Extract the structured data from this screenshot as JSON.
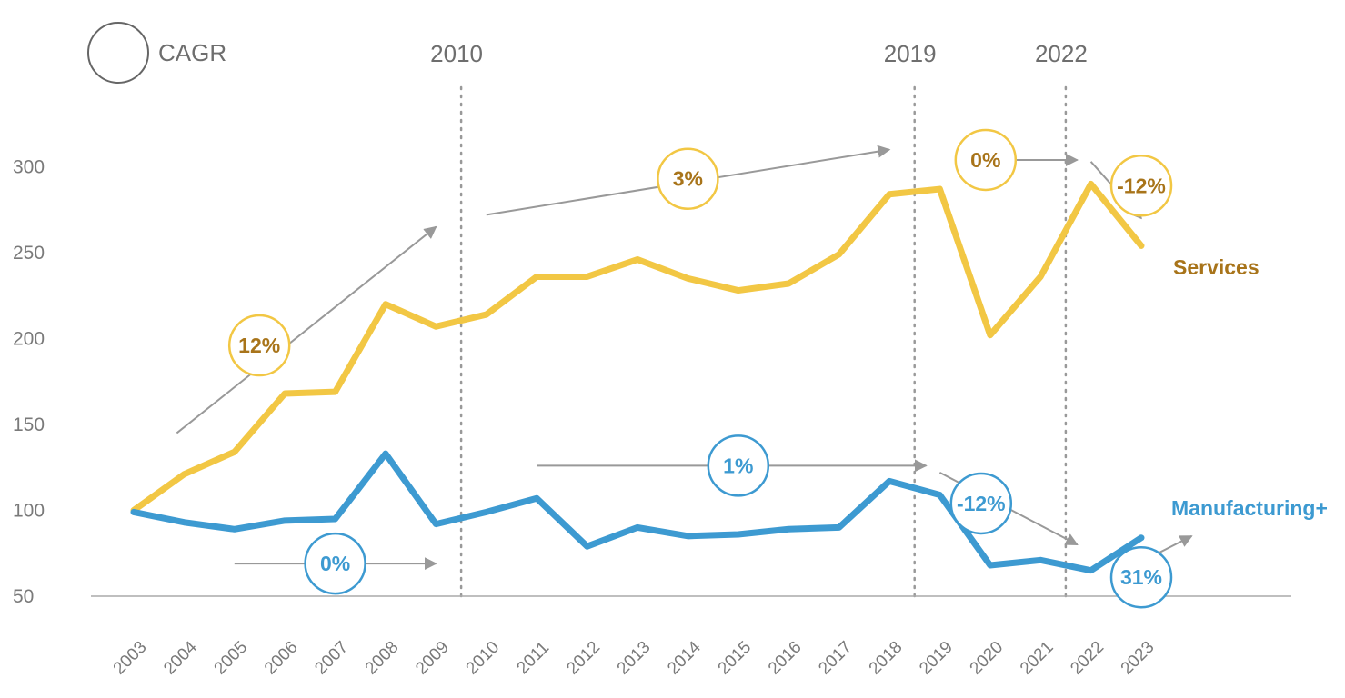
{
  "legend": {
    "label": "CAGR"
  },
  "period_markers": [
    {
      "label": "2010",
      "year": "2010"
    },
    {
      "label": "2019",
      "year": "2019"
    },
    {
      "label": "2022",
      "year": "2022"
    }
  ],
  "colors": {
    "services": "#f2c744",
    "services_text": "#a8741a",
    "manufacturing": "#3d9ad1",
    "arrow": "#999999",
    "grid": "#999999",
    "axis": "#aaaaaa"
  },
  "chart_data": {
    "type": "line",
    "x": [
      "2003",
      "2004",
      "2005",
      "2006",
      "2007",
      "2008",
      "2009",
      "2010",
      "2011",
      "2012",
      "2013",
      "2014",
      "2015",
      "2016",
      "2017",
      "2018",
      "2019",
      "2020",
      "2021",
      "2022",
      "2023"
    ],
    "ylim": [
      50,
      325
    ],
    "yticks": [
      50,
      100,
      150,
      200,
      250,
      300
    ],
    "grid": false,
    "series": [
      {
        "name": "Services",
        "color": "#f2c744",
        "values": [
          100,
          121,
          134,
          168,
          169,
          220,
          207,
          214,
          236,
          236,
          246,
          235,
          228,
          232,
          249,
          284,
          287,
          202,
          236,
          290,
          254
        ]
      },
      {
        "name": "Manufacturing+",
        "color": "#3d9ad1",
        "values": [
          99,
          93,
          89,
          94,
          95,
          133,
          92,
          99,
          107,
          79,
          90,
          85,
          86,
          89,
          90,
          117,
          109,
          68,
          71,
          65,
          84
        ]
      }
    ],
    "annotations": [
      {
        "series": "Services",
        "label": "12%",
        "from": [
          "2004",
          145
        ],
        "to": [
          "2009",
          265
        ],
        "bubble": [
          "2006",
          196
        ]
      },
      {
        "series": "Services",
        "label": "3%",
        "from": [
          "2010",
          272
        ],
        "to": [
          "2018",
          310
        ],
        "bubble": [
          "2014",
          293
        ]
      },
      {
        "series": "Services",
        "label": "0%",
        "from": [
          "2020",
          304
        ],
        "to": [
          "2022",
          304
        ],
        "bubble": [
          "2020",
          304
        ]
      },
      {
        "series": "Services",
        "label": "-12%",
        "from": [
          "2022",
          303
        ],
        "to": [
          "2023",
          270
        ],
        "bubble": [
          "2023",
          289
        ]
      },
      {
        "series": "Manufacturing+",
        "label": "0%",
        "from": [
          "2005",
          69
        ],
        "to": [
          "2009",
          69
        ],
        "bubble": [
          "2007",
          69
        ]
      },
      {
        "series": "Manufacturing+",
        "label": "1%",
        "from": [
          "2011",
          126
        ],
        "to": [
          "2019",
          126
        ],
        "bubble": [
          "2015",
          126
        ]
      },
      {
        "series": "Manufacturing+",
        "label": "-12%",
        "from": [
          "2019",
          122
        ],
        "to": [
          "2022",
          80
        ],
        "bubble": [
          "2020",
          104
        ]
      },
      {
        "series": "Manufacturing+",
        "label": "31%",
        "from": [
          "2023",
          70
        ],
        "to": [
          "2024",
          85
        ],
        "bubble": [
          "2023",
          61
        ]
      }
    ]
  }
}
